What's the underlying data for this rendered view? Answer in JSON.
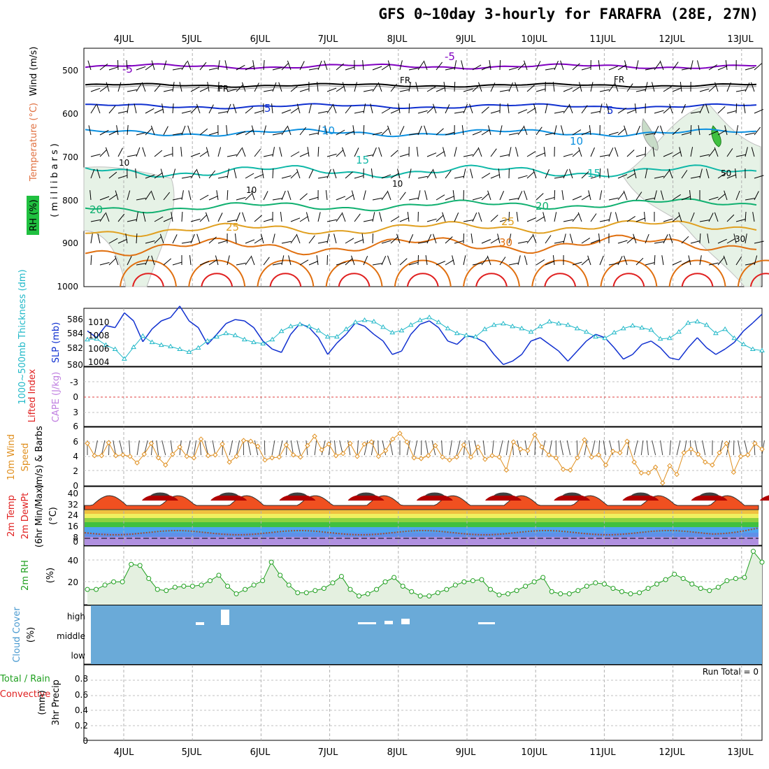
{
  "title": "GFS 0~10day 3-hourly for FARAFRA (28E, 27N)",
  "colors": {
    "purple": "#8000c0",
    "black": "#000000",
    "blue": "#1030d0",
    "skyblue": "#0c90e0",
    "teal": "#10b8a8",
    "green": "#10b070",
    "gold": "#e0a020",
    "orange": "#e07010",
    "red": "#e02020",
    "slp": "#1030d0",
    "thickness": "#20b8c8",
    "wind10m": "#e09020",
    "rh": "#20a020",
    "cloud": "#6aaad8",
    "grid": "#b0b0b0"
  },
  "chart_data": [
    {
      "type": "contour",
      "name": "upper-air",
      "x_dates": [
        "4JUL",
        "5JUL",
        "6JUL",
        "7JUL",
        "8JUL",
        "9JUL",
        "10JUL",
        "11JUL",
        "12JUL",
        "13JUL"
      ],
      "y_axis_ticks": [
        "500",
        "600",
        "700",
        "800",
        "900",
        "1000"
      ],
      "yunit_label": "(millibars)",
      "axis_labels": {
        "wind": "Wind (m/s)",
        "temperature": "Temperature (°C)",
        "rh": "RH (%)"
      },
      "contour_labels": [
        {
          "text": "-5",
          "isotherm": -5
        },
        {
          "text": "FR",
          "isotherm": 0
        },
        {
          "text": "5",
          "isotherm": 5
        },
        {
          "text": "10",
          "isotherm": 10
        },
        {
          "text": "15",
          "isotherm": 15
        },
        {
          "text": "20",
          "isotherm": 20
        },
        {
          "text": "25",
          "isotherm": 25
        },
        {
          "text": "30",
          "isotherm": 30
        }
      ],
      "rh_labels": [
        "10",
        "10",
        "10",
        "50",
        "30"
      ]
    },
    {
      "type": "line",
      "name": "slp-thickness",
      "left_ticks": [
        "586",
        "584",
        "582",
        "580"
      ],
      "right_ticks": [
        "1010",
        "1008",
        "1006",
        "1004"
      ],
      "ylabel_left": "1000~500mb Thickness (dm)",
      "ylabel_right": "SLP (mb)",
      "series": [
        {
          "name": "SLP (mb)",
          "values": [
            1008.5,
            1007.5,
            1009.3,
            1009.0,
            1011.2,
            1010.0,
            1006.9,
            1008.8,
            1010.0,
            1010.5,
            1012.2,
            1010.0,
            1009.0,
            1006.5,
            1008.0,
            1009.6,
            1010.2,
            1010.0,
            1009.0,
            1007.0,
            1005.8,
            1005.3,
            1008.0,
            1009.6,
            1009.0,
            1007.5,
            1005.0,
            1006.7,
            1008.0,
            1009.7,
            1009.2,
            1008.0,
            1007.0,
            1005.0,
            1005.5,
            1008.0,
            1009.5,
            1010.0,
            1009.0,
            1007.0,
            1006.5,
            1007.8,
            1007.5,
            1006.8,
            1005.0,
            1003.5,
            1004.0,
            1005.0,
            1007.0,
            1007.5,
            1006.5,
            1005.5,
            1004.0,
            1005.5,
            1007.0,
            1008.0,
            1007.5,
            1006.0,
            1004.3,
            1005.0,
            1006.5,
            1007.0,
            1006.0,
            1004.5,
            1004.2,
            1006.0,
            1007.5,
            1006.0,
            1005.0,
            1005.8,
            1006.8,
            1008.5,
            1009.7,
            1011.0
          ]
        },
        {
          "name": "1000~500mb Thickness (dm)",
          "values": [
            583.4,
            583.5,
            582.6,
            582.0,
            580.6,
            582.3,
            583.9,
            583.0,
            582.6,
            582.4,
            582.0,
            581.6,
            582.2,
            583.2,
            583.8,
            584.3,
            584.0,
            583.4,
            583.0,
            582.8,
            583.4,
            584.6,
            585.3,
            585.6,
            585.3,
            584.7,
            583.8,
            583.8,
            584.9,
            585.9,
            586.2,
            586.0,
            585.2,
            584.4,
            584.7,
            585.5,
            586.2,
            586.6,
            585.9,
            585.0,
            584.3,
            584.0,
            583.8,
            584.9,
            585.5,
            585.7,
            585.3,
            585.0,
            584.5,
            585.3,
            586.0,
            585.7,
            585.5,
            585.0,
            584.5,
            583.8,
            583.6,
            584.4,
            585.0,
            585.4,
            585.1,
            584.8,
            583.5,
            583.6,
            584.5,
            585.8,
            586.0,
            585.5,
            584.3,
            584.9,
            583.6,
            582.7,
            582.0,
            581.8
          ]
        }
      ]
    },
    {
      "type": "line",
      "name": "cape-li",
      "ticks": [
        "-3",
        "0",
        "3",
        "6"
      ],
      "ylabel_left": "Lifted Index",
      "ylabel_right": "CAPE (J/kg)"
    },
    {
      "type": "line",
      "name": "wind10m",
      "ticks": [
        "6",
        "4",
        "2",
        "0"
      ],
      "ylabel": [
        "10m Wind",
        "Speed",
        "(m/s) & Barbs"
      ],
      "ylim": [
        0,
        8
      ],
      "values": [
        5.8,
        4.1,
        4.1,
        5.9,
        4.1,
        4.2,
        4.0,
        3.1,
        4.3,
        5.8,
        3.8,
        2.8,
        4.3,
        5.3,
        4.0,
        3.8,
        6.4,
        4.1,
        4.2,
        5.7,
        3.2,
        4.0,
        6.2,
        6.1,
        5.4,
        3.5,
        3.8,
        3.9,
        5.6,
        4.2,
        3.9,
        5.5,
        6.8,
        4.9,
        5.7,
        4.1,
        4.4,
        5.8,
        4.0,
        5.7,
        6.0,
        4.0,
        4.8,
        6.4,
        7.2,
        6.0,
        3.8,
        3.7,
        4.1,
        5.5,
        3.9,
        3.5,
        3.9,
        5.6,
        3.9,
        5.3,
        3.6,
        4.1,
        3.9,
        2.1,
        6.0,
        5.0,
        4.8,
        7.0,
        5.3,
        4.2,
        3.8,
        2.2,
        2.1,
        3.8,
        6.3,
        3.9,
        4.2,
        2.8,
        4.7,
        4.5,
        6.1,
        3.2,
        1.7,
        1.7,
        2.5,
        0.3,
        2.7,
        1.5,
        4.5,
        5.0,
        4.3,
        3.2,
        2.8,
        4.5,
        5.8,
        1.8,
        4.0,
        4.2,
        5.8,
        5.0
      ]
    },
    {
      "type": "area",
      "name": "temp2m",
      "ticks": [
        "40",
        "32",
        "24",
        "16",
        "8",
        "0"
      ],
      "ylabel": [
        "2m Temp",
        "2m DewPt",
        "(6hr Min/Max)",
        "(°C)"
      ],
      "ylim": [
        -4,
        42
      ]
    },
    {
      "type": "area",
      "name": "rh2m",
      "ticks": [
        "40",
        "20"
      ],
      "ylabel": [
        "2m RH",
        "(%)"
      ],
      "values": [
        14,
        14,
        18,
        21,
        21,
        37,
        36,
        24,
        14,
        13,
        16,
        17,
        17,
        18,
        22,
        27,
        17,
        10,
        14,
        18,
        22,
        39,
        27,
        18,
        11,
        11,
        13,
        15,
        20,
        26,
        14,
        8,
        10,
        14,
        21,
        25,
        17,
        12,
        8,
        8,
        11,
        14,
        18,
        21,
        22,
        23,
        14,
        9,
        10,
        13,
        17,
        21,
        25,
        12,
        10,
        10,
        13,
        17,
        20,
        19,
        15,
        12,
        10,
        11,
        15,
        19,
        23,
        28,
        24,
        19,
        15,
        13,
        16,
        22,
        24,
        25,
        49,
        39
      ]
    },
    {
      "type": "bar",
      "name": "cloud",
      "levels": [
        "high",
        "middle",
        "low"
      ],
      "ylabel": [
        "Cloud Cover",
        "(%)"
      ]
    },
    {
      "type": "bar",
      "name": "precip",
      "ticks": [
        "0.8",
        "0.6",
        "0.4",
        "0.2",
        "0"
      ],
      "ylabel_left": [
        "Total / Rain",
        "Convective"
      ],
      "ylabel_right": [
        "3hr Precip",
        "(mm)"
      ],
      "ylim": [
        0,
        1
      ],
      "run_total": "Run Total = 0",
      "values": [
        0,
        0,
        0,
        0,
        0,
        0,
        0,
        0,
        0,
        0
      ]
    }
  ]
}
